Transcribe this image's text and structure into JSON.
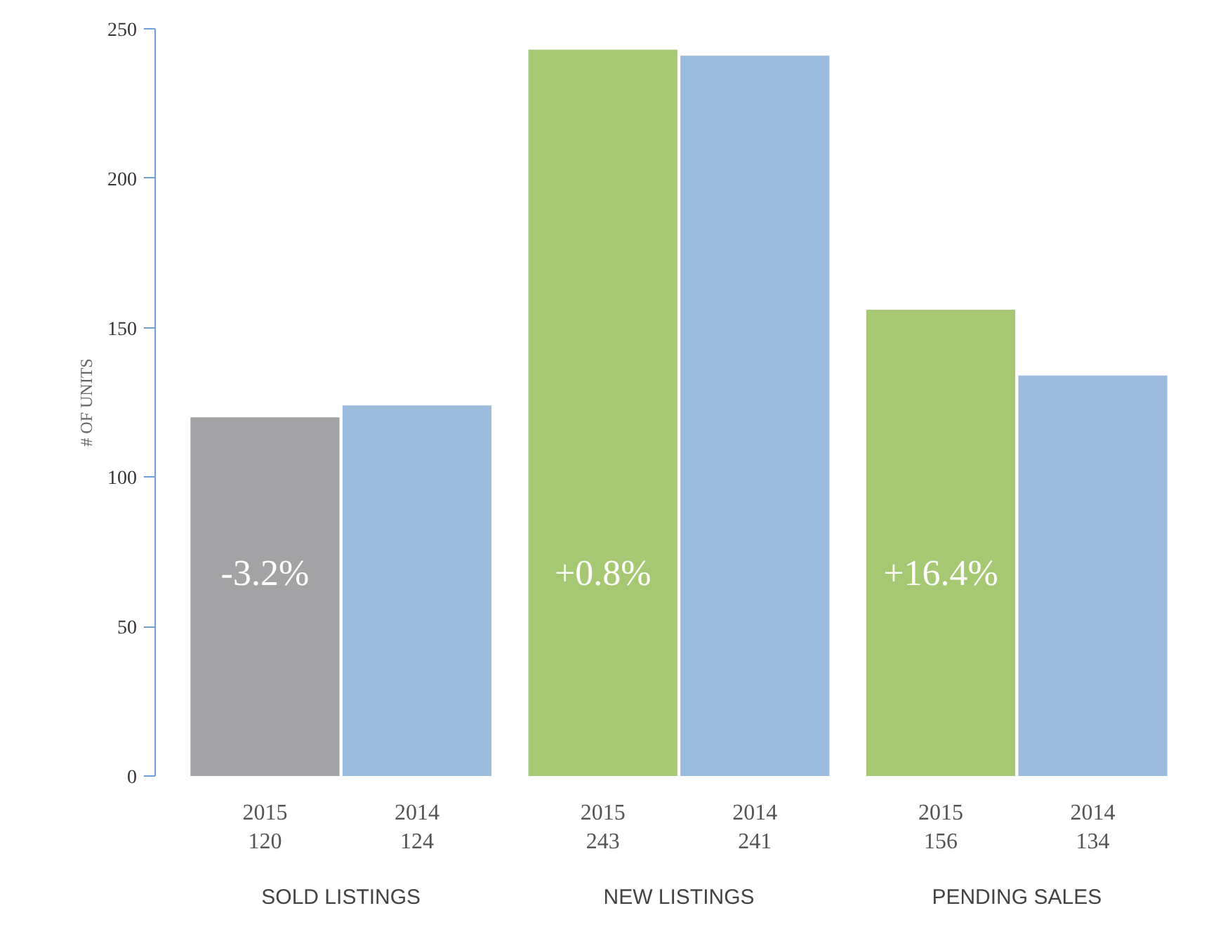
{
  "chart_data": {
    "type": "bar",
    "ylabel": "# OF UNITS",
    "categories": [
      "SOLD LISTINGS",
      "NEW LISTINGS",
      "PENDING SALES"
    ],
    "series": [
      {
        "name": "2015",
        "colors": [
          "#a3a3a5",
          "#a6c872",
          "#a6c872"
        ],
        "values": [
          120,
          243,
          156
        ]
      },
      {
        "name": "2014",
        "color": "#9bbcdd",
        "values": [
          124,
          241,
          134
        ]
      }
    ],
    "ylim": [
      0,
      250
    ],
    "yticks": [
      0,
      50,
      100,
      150,
      200,
      250
    ],
    "data_labels": true,
    "grid": false,
    "annotations": [
      {
        "text": "-3.2%",
        "x": "SOLD LISTINGS",
        "y": 68
      },
      {
        "text": "+0.8%",
        "x": "NEW LISTINGS",
        "y": 68
      },
      {
        "text": "+16.4%",
        "x": "PENDING SALES",
        "y": 68
      }
    ]
  }
}
